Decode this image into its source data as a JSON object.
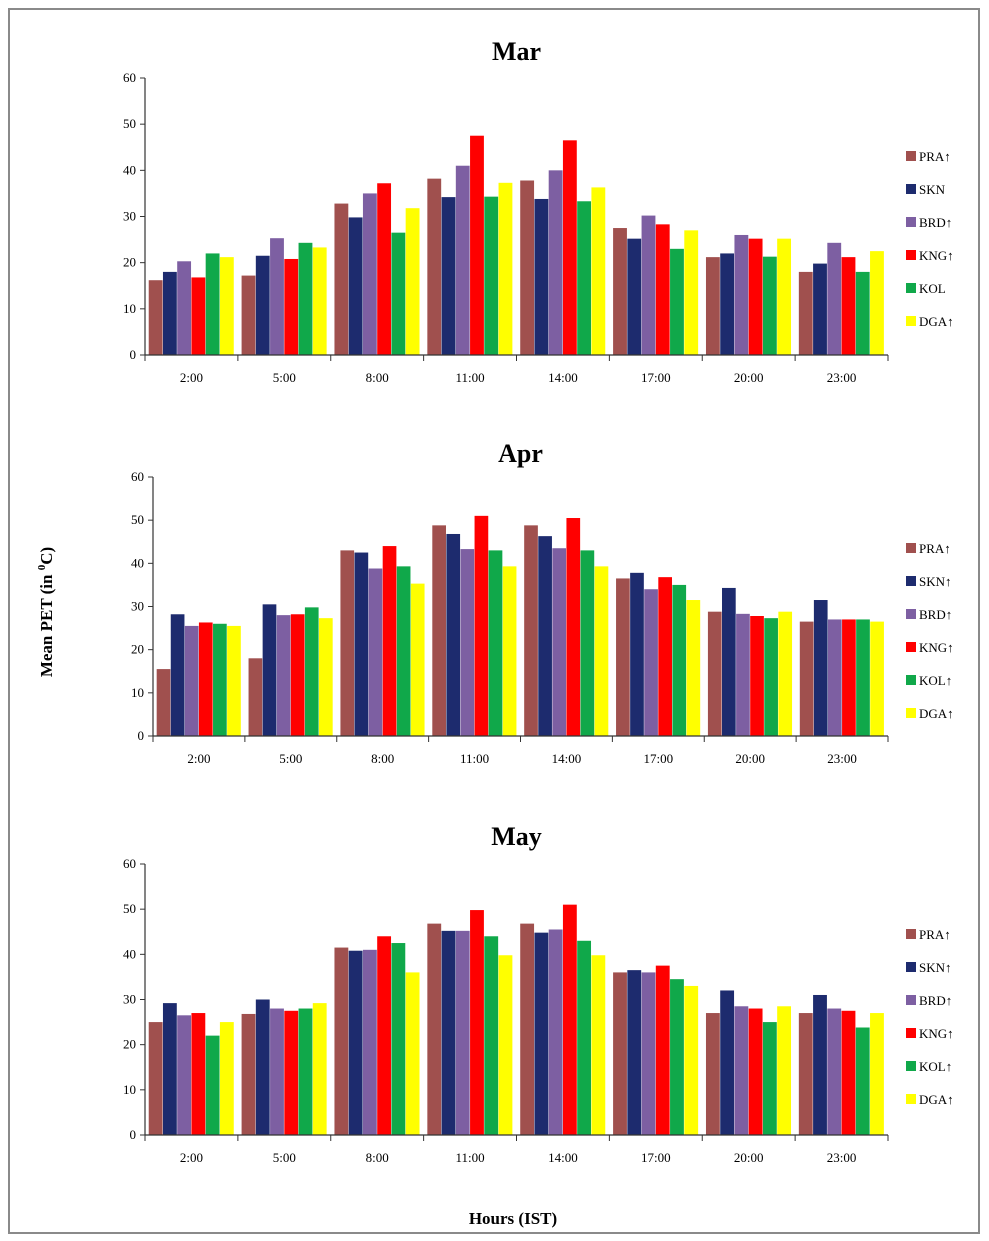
{
  "figure": {
    "ylabel_main": "Mean PET (in ",
    "ylabel_sup": "0",
    "ylabel_tail": "C)",
    "xlabel": "Hours (IST)"
  },
  "colors": {
    "PRA": "#a0504e",
    "SKN": "#1d2b6e",
    "BRD": "#7d5fa2",
    "KNG": "#ff0000",
    "KOL": "#10a84a",
    "DGA": "#ffff00"
  },
  "chart_data": [
    {
      "type": "bar",
      "title": "Mar",
      "categories": [
        "2:00",
        "5:00",
        "8:00",
        "11:00",
        "14:00",
        "17:00",
        "20:00",
        "23:00"
      ],
      "ylim": [
        0,
        60
      ],
      "yticks": [
        0,
        10,
        20,
        30,
        40,
        50,
        60
      ],
      "legend_position": "right",
      "series": [
        {
          "key": "PRA",
          "name": "PRA↑",
          "values": [
            16.2,
            17.2,
            32.8,
            38.2,
            37.8,
            27.5,
            21.2,
            18.0
          ]
        },
        {
          "key": "SKN",
          "name": "SKN",
          "values": [
            18.0,
            21.5,
            29.8,
            34.2,
            33.8,
            25.2,
            22.0,
            19.8
          ]
        },
        {
          "key": "BRD",
          "name": "BRD↑",
          "values": [
            20.3,
            25.3,
            35.0,
            41.0,
            40.0,
            30.2,
            26.0,
            24.3
          ]
        },
        {
          "key": "KNG",
          "name": "KNG↑",
          "values": [
            16.8,
            20.8,
            37.2,
            47.5,
            46.5,
            28.3,
            25.2,
            21.2
          ]
        },
        {
          "key": "KOL",
          "name": "KOL",
          "values": [
            22.0,
            24.3,
            26.5,
            34.3,
            33.3,
            23.0,
            21.3,
            18.0
          ]
        },
        {
          "key": "DGA",
          "name": "DGA↑",
          "values": [
            21.2,
            23.3,
            31.8,
            37.3,
            36.3,
            27.0,
            25.2,
            22.5
          ]
        }
      ]
    },
    {
      "type": "bar",
      "title": "Apr",
      "categories": [
        "2:00",
        "5:00",
        "8:00",
        "11:00",
        "14:00",
        "17:00",
        "20:00",
        "23:00"
      ],
      "ylim": [
        0,
        60
      ],
      "yticks": [
        0,
        10,
        20,
        30,
        40,
        50,
        60
      ],
      "legend_position": "right",
      "series": [
        {
          "key": "PRA",
          "name": "PRA↑",
          "values": [
            15.5,
            18.0,
            43.0,
            48.8,
            48.8,
            36.5,
            28.8,
            26.5
          ]
        },
        {
          "key": "SKN",
          "name": "SKN↑",
          "values": [
            28.2,
            30.5,
            42.5,
            46.8,
            46.3,
            37.8,
            34.3,
            31.5
          ]
        },
        {
          "key": "BRD",
          "name": "BRD↑",
          "values": [
            25.5,
            28.0,
            38.8,
            43.3,
            43.5,
            34.0,
            28.3,
            27.0
          ]
        },
        {
          "key": "KNG",
          "name": "KNG↑",
          "values": [
            26.3,
            28.2,
            44.0,
            51.0,
            50.5,
            36.8,
            27.8,
            27.0
          ]
        },
        {
          "key": "KOL",
          "name": "KOL↑",
          "values": [
            26.0,
            29.8,
            39.3,
            43.0,
            43.0,
            35.0,
            27.3,
            27.0
          ]
        },
        {
          "key": "DGA",
          "name": "DGA↑",
          "values": [
            25.5,
            27.3,
            35.3,
            39.3,
            39.3,
            31.5,
            28.8,
            26.5
          ]
        }
      ]
    },
    {
      "type": "bar",
      "title": "May",
      "categories": [
        "2:00",
        "5:00",
        "8:00",
        "11:00",
        "14:00",
        "17:00",
        "20:00",
        "23:00"
      ],
      "ylim": [
        0,
        60
      ],
      "yticks": [
        0,
        10,
        20,
        30,
        40,
        50,
        60
      ],
      "legend_position": "right",
      "series": [
        {
          "key": "PRA",
          "name": "PRA↑",
          "values": [
            25.0,
            26.8,
            41.5,
            46.8,
            46.8,
            36.0,
            27.0,
            27.0
          ]
        },
        {
          "key": "SKN",
          "name": "SKN↑",
          "values": [
            29.2,
            30.0,
            40.8,
            45.2,
            44.8,
            36.5,
            32.0,
            31.0
          ]
        },
        {
          "key": "BRD",
          "name": "BRD↑",
          "values": [
            26.5,
            28.0,
            41.0,
            45.2,
            45.5,
            36.0,
            28.5,
            28.0
          ]
        },
        {
          "key": "KNG",
          "name": "KNG↑",
          "values": [
            27.0,
            27.5,
            44.0,
            49.8,
            51.0,
            37.5,
            28.0,
            27.5
          ]
        },
        {
          "key": "KOL",
          "name": "KOL↑",
          "values": [
            22.0,
            28.0,
            42.5,
            44.0,
            43.0,
            34.5,
            25.0,
            23.8
          ]
        },
        {
          "key": "DGA",
          "name": "DGA↑",
          "values": [
            25.0,
            29.2,
            36.0,
            39.8,
            39.8,
            33.0,
            28.5,
            27.0
          ]
        }
      ]
    }
  ]
}
